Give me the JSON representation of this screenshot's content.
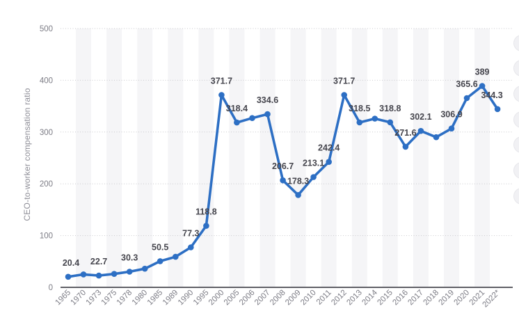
{
  "chart_data": {
    "type": "line",
    "title": "",
    "xlabel": "",
    "ylabel": "CEO-to-worker compensation ratio",
    "categories": [
      "1965",
      "1970",
      "1973",
      "1975",
      "1978",
      "1980",
      "1985",
      "1989",
      "1990",
      "1995",
      "2000",
      "2005",
      "2006",
      "2007",
      "2008",
      "2009",
      "2010",
      "2011",
      "2012",
      "2013",
      "2014",
      "2015",
      "2016",
      "2017",
      "2018",
      "2019",
      "2020",
      "2021",
      "2022*"
    ],
    "values": [
      20.4,
      25,
      22.7,
      26,
      30.3,
      36,
      50.5,
      59,
      77.3,
      118.8,
      371.7,
      318.4,
      327,
      334.6,
      206.7,
      178.3,
      213.1,
      242.4,
      371.7,
      318.5,
      326,
      318.8,
      271.6,
      302.1,
      290,
      306.9,
      365.6,
      389,
      344.3
    ],
    "point_labels": [
      "20.4",
      null,
      "22.7",
      null,
      "30.3",
      null,
      "50.5",
      null,
      "77.3",
      "118.8",
      "371.7",
      "318.4",
      null,
      "334.6",
      "206.7",
      "178.3",
      "213.1",
      "242.4",
      "371.7",
      "318.5",
      null,
      "318.8",
      "271.6",
      "302.1",
      null,
      "306.9",
      "365.6",
      "389",
      "344.3"
    ],
    "estimated_indices": [
      1,
      3,
      5,
      7,
      12,
      20,
      24
    ],
    "label_dx": {
      "0": 4,
      "28": -8
    },
    "y_ticks": [
      0,
      100,
      200,
      300,
      400,
      500
    ],
    "ylim": [
      0,
      500
    ],
    "grid": "horizontal dotted gridlines with alternating vertical category stripes",
    "legend": "none",
    "colors": {
      "series": "#2d6fc4",
      "data_label": "#45454d",
      "tick_label": "#7c7c85",
      "axis_title": "#8e8e97",
      "gridline": "#c9c9ce",
      "axis_line": "#5f5f66",
      "stripe": "#f5f5f7",
      "background": "#ffffff",
      "side_button": "#f1f1f4"
    }
  },
  "widgets": {
    "right_edge_buttons": 7
  }
}
